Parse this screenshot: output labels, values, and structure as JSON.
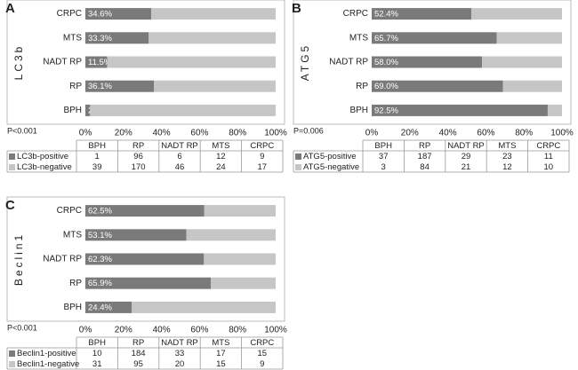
{
  "chart_data": [
    {
      "type": "bar",
      "orientation": "horizontal",
      "stacked": true,
      "panel": "A",
      "ylabel": "LC3b",
      "p_value": "P<0.001",
      "categories": [
        "CRPC",
        "MTS",
        "NADT RP",
        "RP",
        "BPH"
      ],
      "series": [
        {
          "name": "LC3b-positive",
          "color": "#7a7a7a",
          "values": [
            34.6,
            33.3,
            11.5,
            36.1,
            2.5
          ],
          "value_labels": [
            "34.6%",
            "33.3%",
            "11.5%",
            "36.1%",
            "2.5%"
          ]
        },
        {
          "name": "LC3b-negative",
          "color": "#c6c6c6",
          "values": [
            65.4,
            66.7,
            88.5,
            63.9,
            97.5
          ]
        }
      ],
      "xlim": [
        0,
        100
      ],
      "xticks": [
        {
          "value": 0,
          "label": "0%"
        },
        {
          "value": 20,
          "label": "20%"
        },
        {
          "value": 40,
          "label": "40%"
        },
        {
          "value": 60,
          "label": "60%"
        },
        {
          "value": 80,
          "label": "80%"
        },
        {
          "value": 100,
          "label": "100%"
        }
      ],
      "table": {
        "columns": [
          "BPH",
          "RP",
          "NADT RP",
          "MTS",
          "CRPC"
        ],
        "rows": [
          [
            1,
            96,
            6,
            12,
            9
          ],
          [
            39,
            170,
            46,
            24,
            17
          ]
        ]
      }
    },
    {
      "type": "bar",
      "orientation": "horizontal",
      "stacked": true,
      "panel": "B",
      "ylabel": "ATG5",
      "p_value": "P=0.006",
      "categories": [
        "CRPC",
        "MTS",
        "NADT RP",
        "RP",
        "BPH"
      ],
      "series": [
        {
          "name": "ATG5-positive",
          "color": "#7a7a7a",
          "values": [
            52.4,
            65.7,
            58.0,
            69.0,
            92.5
          ],
          "value_labels": [
            "52.4%",
            "65.7%",
            "58.0%",
            "69.0%",
            "92.5%"
          ]
        },
        {
          "name": "ATG5-negative",
          "color": "#c6c6c6",
          "values": [
            47.6,
            34.3,
            42.0,
            31.0,
            7.5
          ]
        }
      ],
      "xlim": [
        0,
        100
      ],
      "xticks": [
        {
          "value": 0,
          "label": "0%"
        },
        {
          "value": 20,
          "label": "20%"
        },
        {
          "value": 40,
          "label": "40%"
        },
        {
          "value": 60,
          "label": "60%"
        },
        {
          "value": 80,
          "label": "80%"
        },
        {
          "value": 100,
          "label": "100%"
        }
      ],
      "table": {
        "columns": [
          "BPH",
          "RP",
          "NADT RP",
          "MTS",
          "CRPC"
        ],
        "rows": [
          [
            37,
            187,
            29,
            23,
            11
          ],
          [
            3,
            84,
            21,
            12,
            10
          ]
        ]
      }
    },
    {
      "type": "bar",
      "orientation": "horizontal",
      "stacked": true,
      "panel": "C",
      "ylabel": "Beclin1",
      "p_value": "P<0.001",
      "categories": [
        "CRPC",
        "MTS",
        "NADT RP",
        "RP",
        "BPH"
      ],
      "series": [
        {
          "name": "Beclin1-positive",
          "color": "#7a7a7a",
          "values": [
            62.5,
            53.1,
            62.3,
            65.9,
            24.4
          ],
          "value_labels": [
            "62.5%",
            "53.1%",
            "62.3%",
            "65.9%",
            "24.4%"
          ]
        },
        {
          "name": "Beclin1-negative",
          "color": "#c6c6c6",
          "values": [
            37.5,
            46.9,
            37.7,
            34.1,
            75.6
          ]
        }
      ],
      "xlim": [
        0,
        100
      ],
      "xticks": [
        {
          "value": 0,
          "label": "0%"
        },
        {
          "value": 20,
          "label": "20%"
        },
        {
          "value": 40,
          "label": "40%"
        },
        {
          "value": 60,
          "label": "60%"
        },
        {
          "value": 80,
          "label": "80%"
        },
        {
          "value": 100,
          "label": "100%"
        }
      ],
      "table": {
        "columns": [
          "BPH",
          "RP",
          "NADT RP",
          "MTS",
          "CRPC"
        ],
        "rows": [
          [
            10,
            184,
            33,
            17,
            15
          ],
          [
            31,
            95,
            20,
            15,
            9
          ]
        ]
      }
    }
  ]
}
